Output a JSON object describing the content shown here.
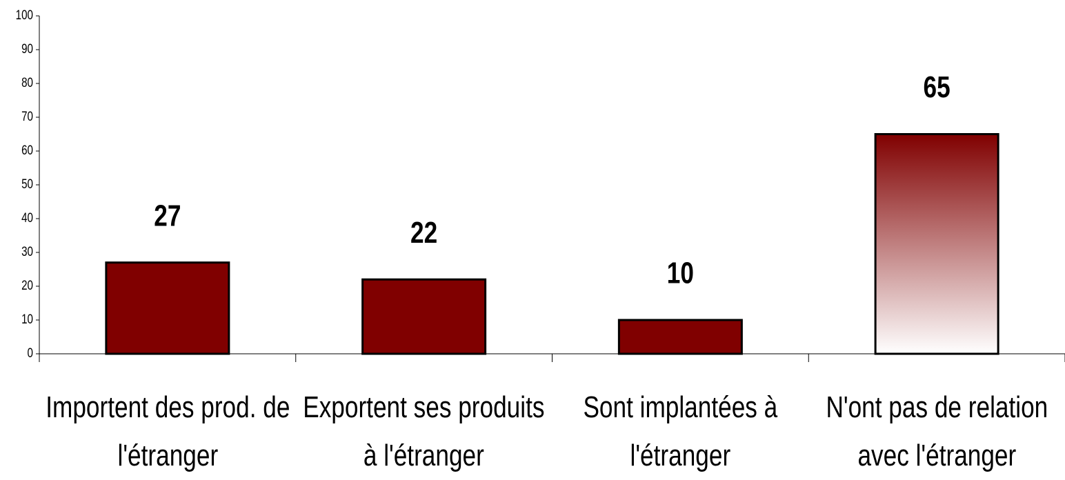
{
  "chart_data": {
    "type": "bar",
    "categories": [
      "Importent des prod. de l'étranger",
      "Exportent ses produits à l'étranger",
      "Sont implantées à l'étranger",
      "N'ont pas de relation avec l'étranger"
    ],
    "values": [
      27,
      22,
      10,
      65
    ],
    "colors": [
      "#800000",
      "#800000",
      "#800000",
      "#800000"
    ],
    "fill_styles": [
      "solid",
      "solid",
      "solid",
      "gradient"
    ],
    "ylim": [
      0,
      100
    ],
    "yticks": [
      0,
      10,
      20,
      30,
      40,
      50,
      60,
      70,
      80,
      90,
      100
    ],
    "grid": false
  }
}
